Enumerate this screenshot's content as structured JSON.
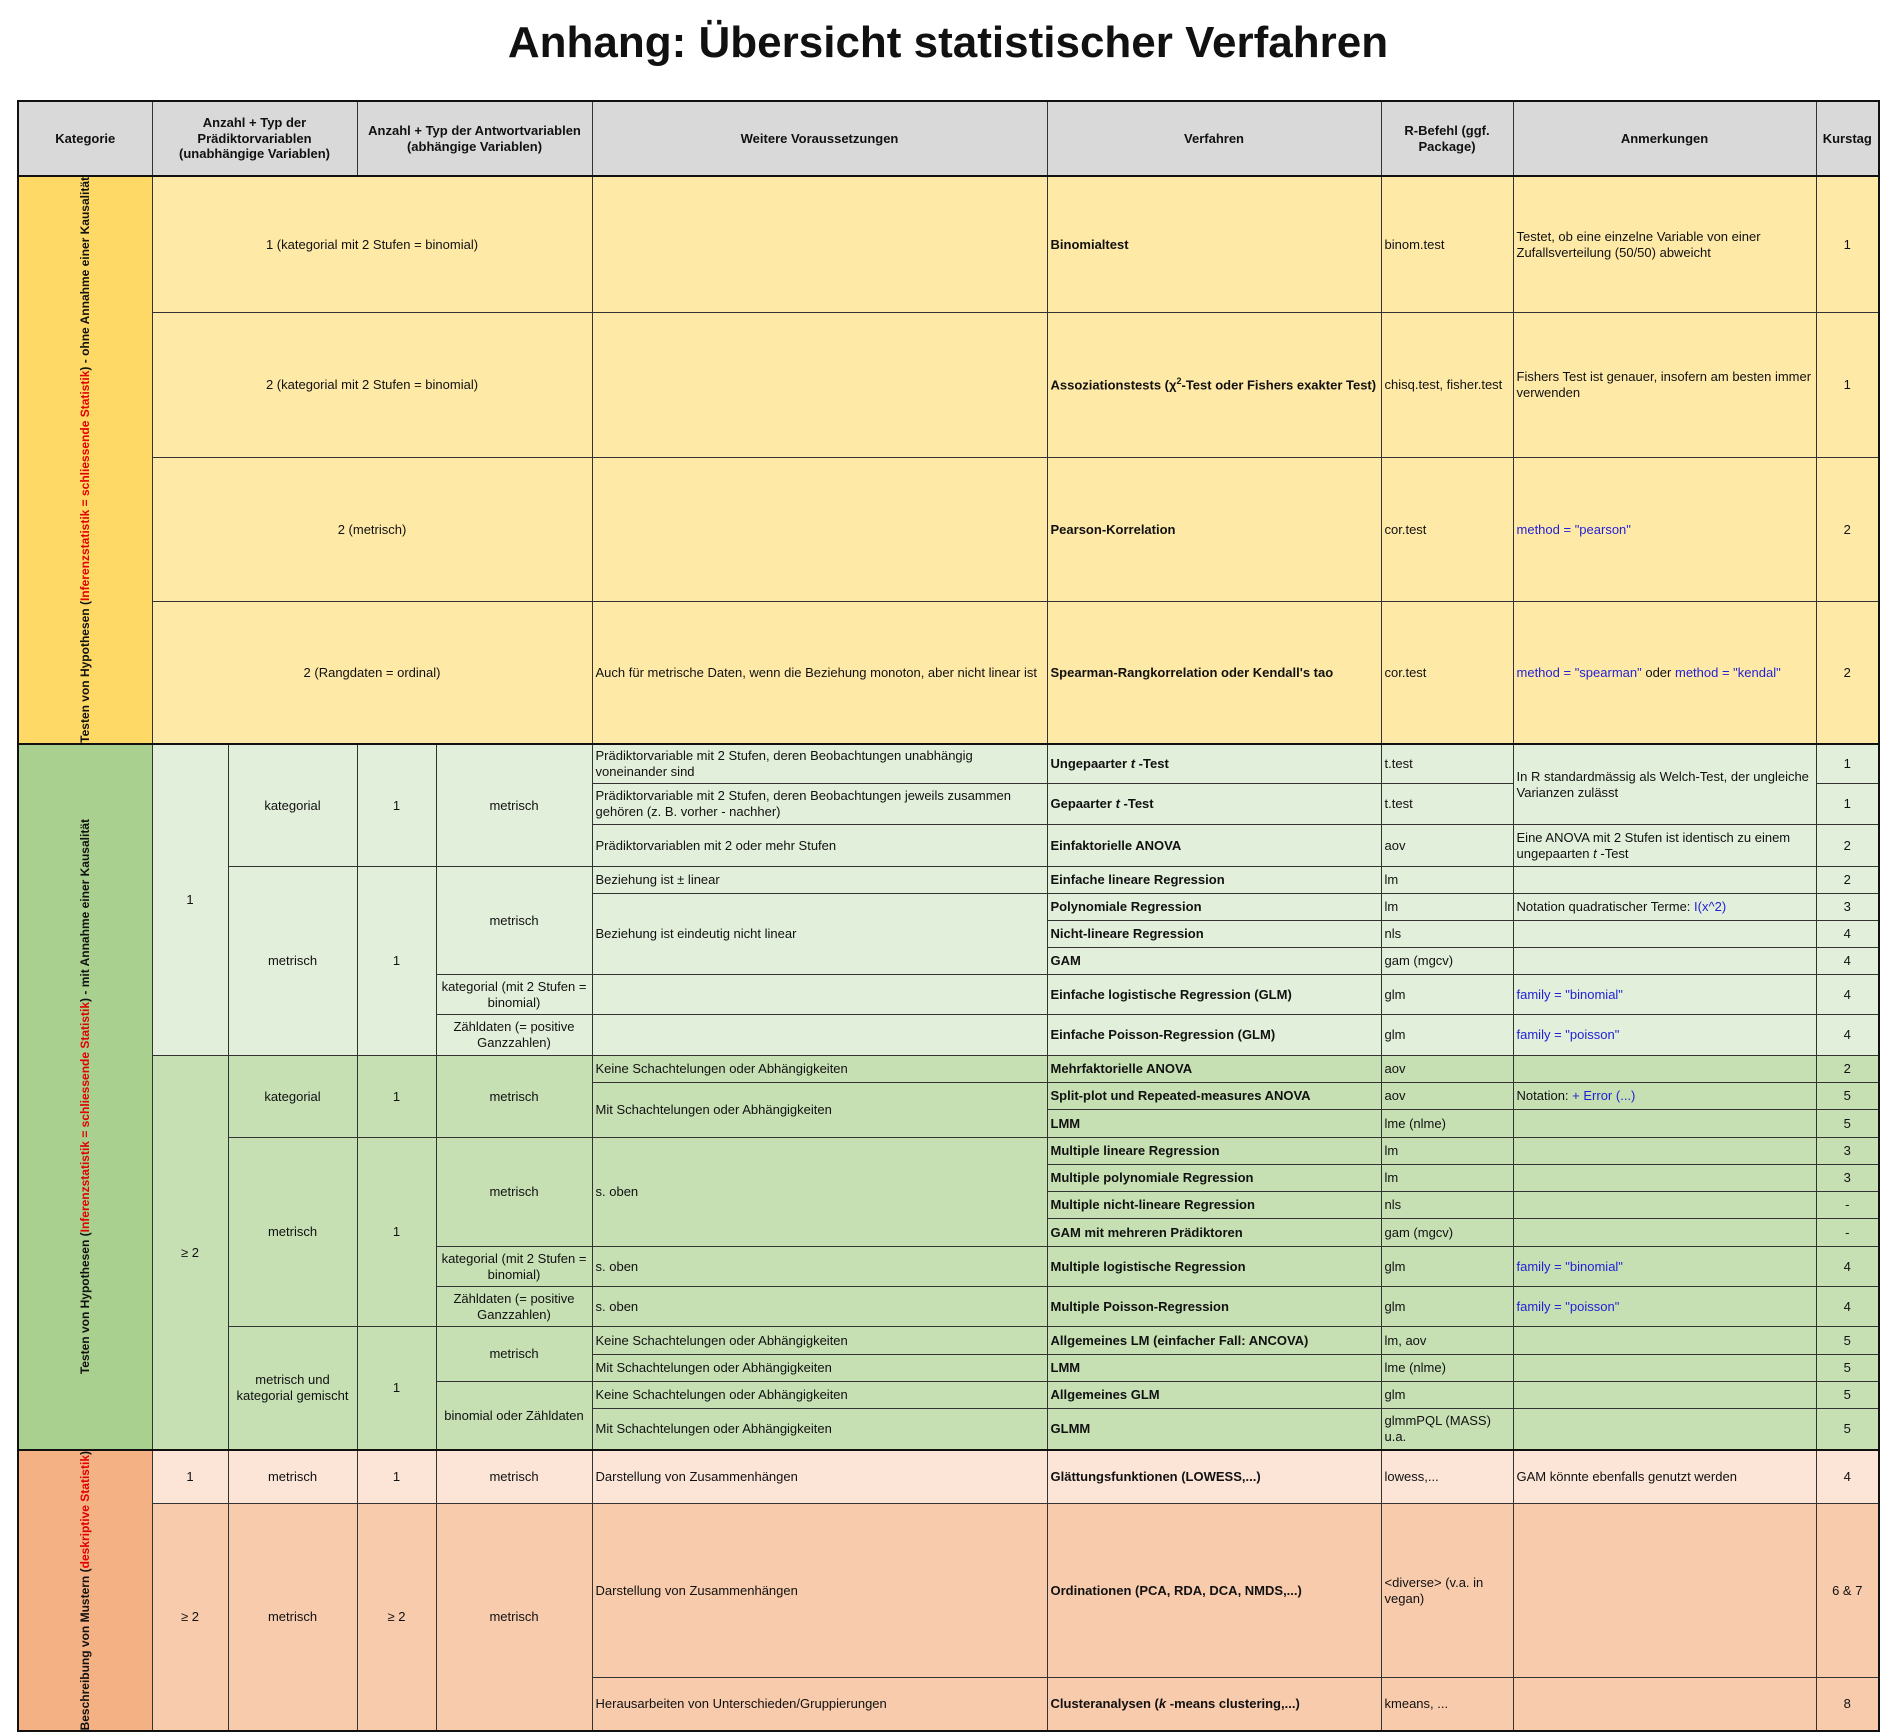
{
  "header": {
    "title": "Anhang: Übersicht statistischer Verfahren"
  },
  "table": {
    "columns": [
      "Kategorie",
      "Anzahl + Typ der Prädiktorvariablen (unabhängige Variablen)",
      "Anzahl + Typ der Antwortvariablen (abhängige Variablen)",
      "Weitere Voraussetzungen",
      "Verfahren",
      "R-Befehl (ggf. Package)",
      "Anmerkungen",
      "Kurstag"
    ],
    "categories": [
      [
        "Testen von Hypothesen (",
        "Inferenzstatistik = schliessende Statistik",
        ") - ohne Annahme einer Kausalität"
      ],
      [
        "Testen von Hypothesen (",
        "Inferenzstatistik = schliessende Statistik",
        ") - mit Annahme einer Kausalität"
      ],
      [
        "Beschreibung von Mustern (",
        "deskriptive Statistik",
        ")"
      ]
    ],
    "rows": [
      {
        "predictors": "1 (kategorial mit 2 Stufen = binomial)",
        "method": "Binomialtest",
        "r": "binom.test",
        "note": "Testet, ob eine einzelne Variable von einer Zufallsverteilung (50/50) abweicht",
        "day": "1"
      },
      {
        "predictors": "2 (kategorial mit 2 Stufen = binomial)",
        "method": [
          "Assoziationstests (χ",
          "2",
          "-Test oder Fishers exakter Test)"
        ],
        "r": "chisq.test, fisher.test",
        "note": "Fishers Test ist genauer, insofern am besten immer verwenden",
        "day": "1"
      },
      {
        "predictors": "2 (metrisch)",
        "method": "Pearson-Korrelation",
        "r": "cor.test",
        "note": "method = \"pearson\"",
        "day": "2"
      },
      {
        "predictors": "2 (Rangdaten = ordinal)",
        "condition": "Auch für metrische Daten, wenn die Beziehung monoton, aber nicht linear ist",
        "method": "Spearman-Rangkorrelation oder Kendall's tao",
        "r": "cor.test",
        "note": [
          "method = \"spearman\"",
          " oder ",
          "method = \"kendal\""
        ],
        "day": "2"
      },
      {
        "pred_n": "1",
        "pred_type": "kategorial",
        "resp_n": "1",
        "resp_type": "metrisch",
        "condition": "Prädiktorvariable mit 2 Stufen, deren Beobachtungen unabhängig voneinander sind",
        "method": [
          "Ungepaarter ",
          "t",
          " -Test"
        ],
        "r": "t.test",
        "note": "In R standardmässig als Welch-Test, der ungleiche Varianzen zulässt",
        "day": "1"
      },
      {
        "condition": "Prädiktorvariable mit 2 Stufen, deren Beobachtungen jeweils zusammen gehören (z. B. vorher - nachher)",
        "method": [
          "Gepaarter ",
          "t",
          " -Test"
        ],
        "r": "t.test",
        "day": "1"
      },
      {
        "condition": "Prädiktorvariablen mit 2 oder mehr Stufen",
        "method": "Einfaktorielle ANOVA",
        "r": "aov",
        "note": [
          "Eine ANOVA mit 2 Stufen ist identisch zu einem ungepaarten ",
          "t",
          " -Test"
        ],
        "day": "2"
      },
      {
        "pred_type": "metrisch",
        "resp_n": "1",
        "resp_type": "metrisch",
        "condition": "Beziehung ist ± linear",
        "method": "Einfache lineare Regression",
        "r": "lm",
        "day": "2"
      },
      {
        "condition": "Beziehung ist eindeutig nicht linear",
        "method": "Polynomiale Regression",
        "r": "lm",
        "note": [
          "Notation quadratischer Terme:  ",
          "I(x^2)"
        ],
        "day": "3"
      },
      {
        "method": "Nicht-lineare Regression",
        "r": "nls",
        "day": "4"
      },
      {
        "method": "GAM",
        "r": "gam (mgcv)",
        "day": "4"
      },
      {
        "resp_type": "kategorial (mit 2 Stufen = binomial)",
        "method": "Einfache logistische Regression (GLM)",
        "r": "glm",
        "note": "family = \"binomial\"",
        "day": "4"
      },
      {
        "resp_type": "Zähldaten (= positive Ganzzahlen)",
        "method": "Einfache Poisson-Regression (GLM)",
        "r": "glm",
        "note": "family = \"poisson\"",
        "day": "4"
      },
      {
        "pred_n": "≥ 2",
        "pred_type": "kategorial",
        "resp_n": "1",
        "resp_type": "metrisch",
        "condition": "Keine Schachtelungen oder Abhängigkeiten",
        "method": "Mehrfaktorielle ANOVA",
        "r": "aov",
        "day": "2"
      },
      {
        "condition": "Mit Schachtelungen oder Abhängigkeiten",
        "method": "Split-plot und Repeated-measures ANOVA",
        "r": "aov",
        "note": [
          "Notation: ",
          "+ Error (...)"
        ],
        "day": "5"
      },
      {
        "method": "LMM",
        "r": "lme (nlme)",
        "day": "5"
      },
      {
        "pred_type": "metrisch",
        "resp_n": "1",
        "resp_type": "metrisch",
        "condition": "s. oben",
        "method": "Multiple lineare Regression",
        "r": "lm",
        "day": "3"
      },
      {
        "method": "Multiple polynomiale Regression",
        "r": "lm",
        "day": "3"
      },
      {
        "method": "Multiple nicht-lineare Regression",
        "r": "nls",
        "day": "-"
      },
      {
        "method": "GAM mit mehreren Prädiktoren",
        "r": "gam (mgcv)",
        "day": "-"
      },
      {
        "resp_type": "kategorial (mit 2 Stufen = binomial)",
        "condition": "s. oben",
        "method": "Multiple logistische Regression",
        "r": "glm",
        "note": "family = \"binomial\"",
        "day": "4"
      },
      {
        "resp_type": "Zähldaten (= positive Ganzzahlen)",
        "condition": "s. oben",
        "method": "Multiple Poisson-Regression",
        "r": "glm",
        "note": "family = \"poisson\"",
        "day": "4"
      },
      {
        "pred_type": "metrisch und kategorial gemischt",
        "resp_n": "1",
        "resp_type": "metrisch",
        "condition": "Keine Schachtelungen oder Abhängigkeiten",
        "method": "Allgemeines LM (einfacher Fall: ANCOVA)",
        "r": "lm, aov",
        "day": "5"
      },
      {
        "condition": "Mit Schachtelungen oder Abhängigkeiten",
        "method": "LMM",
        "r": "lme (nlme)",
        "day": "5"
      },
      {
        "resp_type": "binomial oder Zähldaten",
        "condition": "Keine Schachtelungen oder Abhängigkeiten",
        "method": "Allgemeines GLM",
        "r": "glm",
        "day": "5"
      },
      {
        "condition": "Mit Schachtelungen oder Abhängigkeiten",
        "method": "GLMM",
        "r": "glmmPQL (MASS) u.a.",
        "day": "5"
      },
      {
        "pred_n": "1",
        "pred_type": "metrisch",
        "resp_n": "1",
        "resp_type": "metrisch",
        "condition": "Darstellung von Zusammenhängen",
        "method": "Glättungsfunktionen (LOWESS,...)",
        "r": "lowess,...",
        "note": "GAM könnte ebenfalls genutzt werden",
        "day": "4"
      },
      {
        "pred_n": "≥ 2",
        "pred_type": "metrisch",
        "resp_n": "≥ 2",
        "resp_type": "metrisch",
        "condition": "Darstellung von Zusammenhängen",
        "method": "Ordinationen (PCA, RDA, DCA, NMDS,...)",
        "r": "<diverse> (v.a. in vegan)",
        "day": "6 & 7"
      },
      {
        "condition": "Herausarbeiten von Unterschieden/Gruppierungen",
        "method": [
          "Clusteranalysen (",
          "k",
          " -means clustering,...)"
        ],
        "r": "kmeans, ...",
        "day": "8"
      }
    ]
  }
}
